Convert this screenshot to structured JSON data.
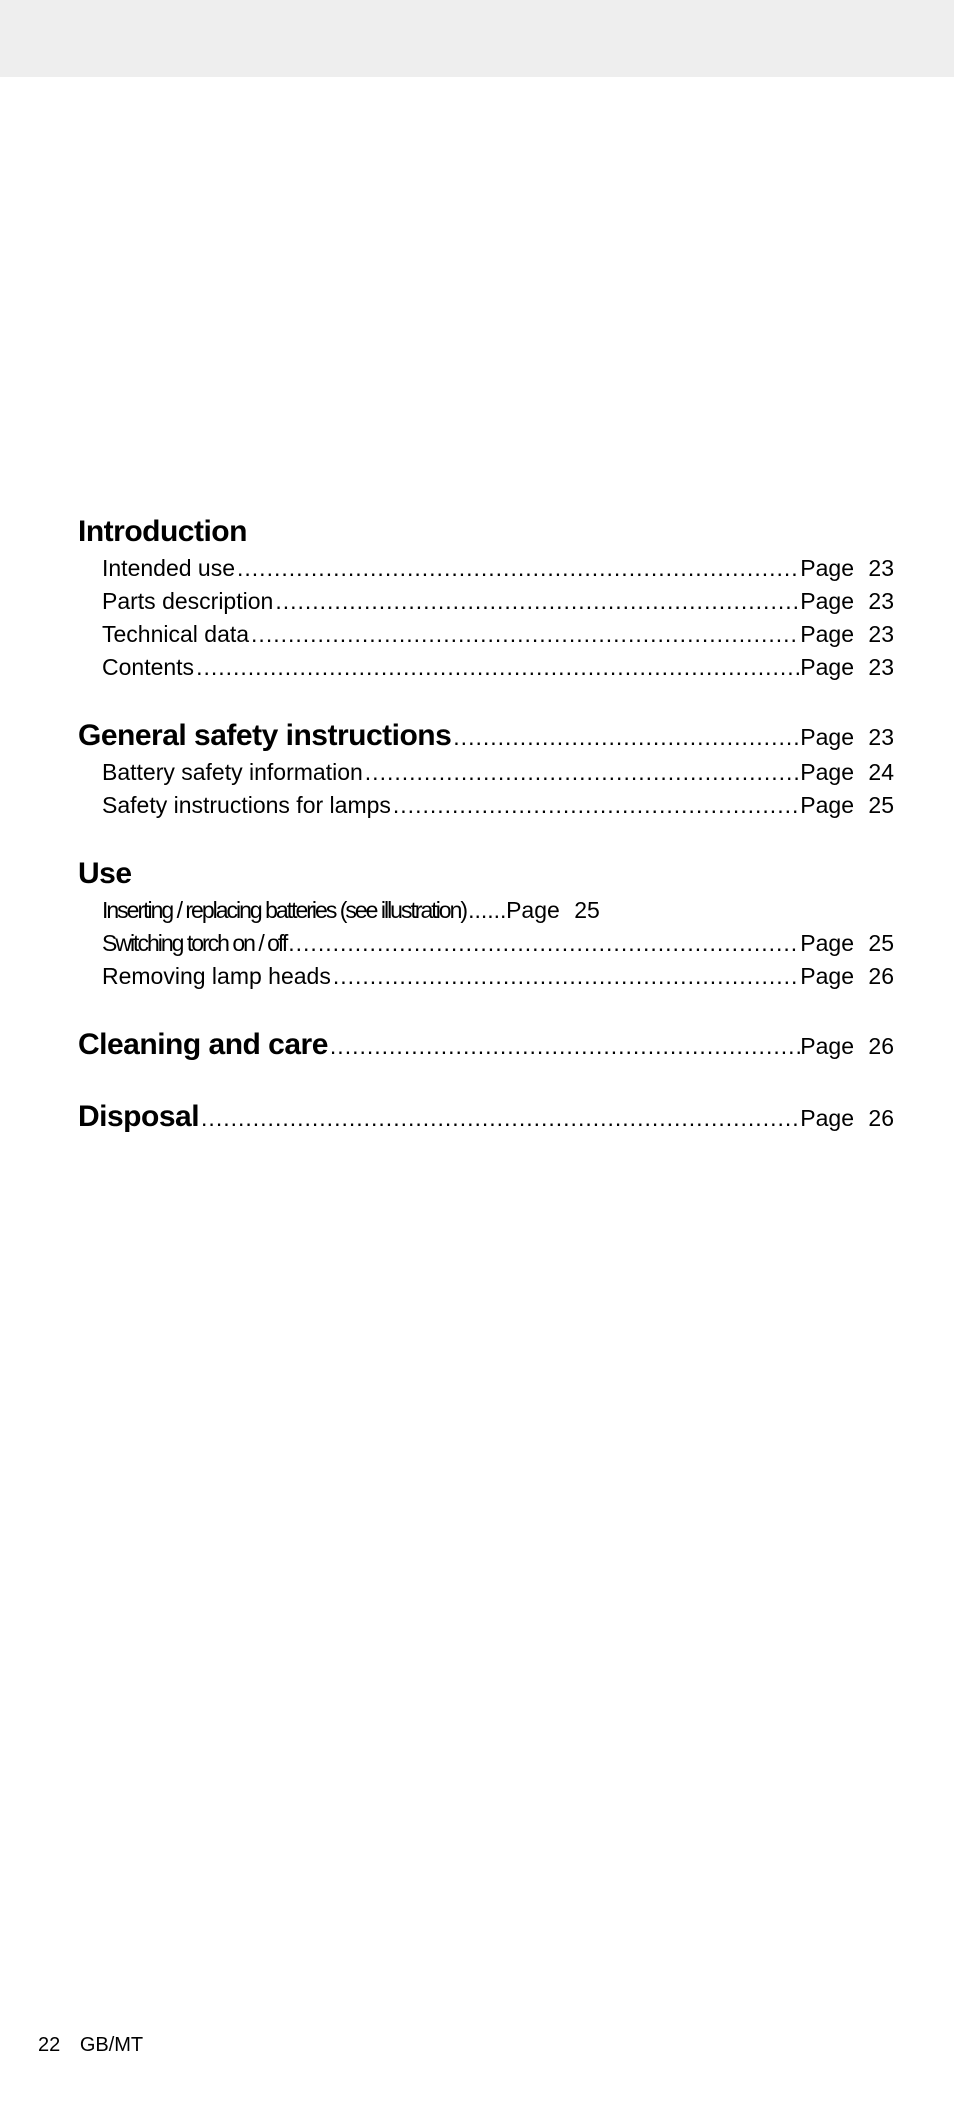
{
  "page_label": "Page",
  "footer": {
    "page_number": "22",
    "region": "GB/MT"
  },
  "sections": [
    {
      "heading": "Introduction",
      "heading_page": null,
      "entries": [
        {
          "title": "Intended use",
          "page": "23"
        },
        {
          "title": "Parts description",
          "page": "23"
        },
        {
          "title": "Technical data",
          "page": "23"
        },
        {
          "title": "Contents",
          "page": "23"
        }
      ]
    },
    {
      "heading": "General safety instructions",
      "heading_page": "23",
      "entries": [
        {
          "title": "Battery safety information",
          "page": "24"
        },
        {
          "title": "Safety instructions for lamps",
          "page": "25"
        }
      ]
    },
    {
      "heading": "Use",
      "heading_page": null,
      "entries": [
        {
          "title": "Inserting / replacing batteries (see illustration)",
          "page": "25",
          "tight_leader": true
        },
        {
          "title": "Switching torch on / off",
          "page": "25"
        },
        {
          "title": "Removing lamp heads",
          "page": "26"
        }
      ]
    },
    {
      "heading": "Cleaning and care",
      "heading_page": "26",
      "entries": []
    },
    {
      "heading": "Disposal",
      "heading_page": "26",
      "entries": []
    }
  ]
}
